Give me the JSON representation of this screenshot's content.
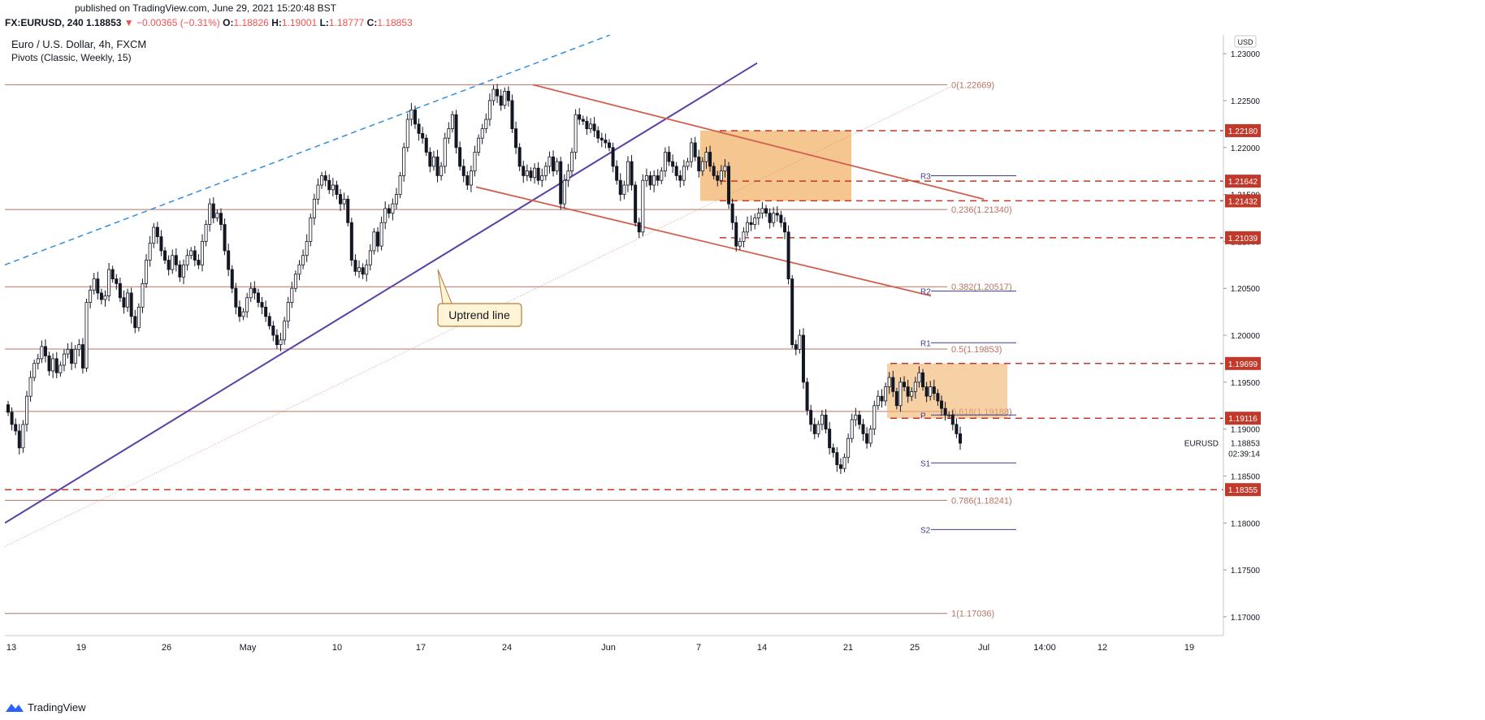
{
  "header": {
    "published": "published on TradingView.com, June 29, 2021 15:20:48 BST",
    "symbol": "FX:EURUSD, 240",
    "last": "1.18853",
    "change_arrow": "▼",
    "change": "−0.00365 (−0.31%)",
    "o_label": "O:",
    "o_value": "1.18826",
    "h_label": "H:",
    "h_value": "1.19001",
    "l_label": "L:",
    "l_value": "1.18777",
    "c_label": "C:",
    "c_value": "1.18853"
  },
  "legend": {
    "title": "Euro / U.S. Dollar, 4h, FXCM",
    "indicator": "Pivots (Classic, Weekly, 15)"
  },
  "footer": {
    "brand": "TradingView"
  },
  "colors": {
    "up": "#ffffff",
    "down": "#131722",
    "fib": "#b87363",
    "resistance": "#c0392b",
    "uptrend": "#5b3fa8",
    "dashed_blue": "#2f8fe0",
    "zone": "#f2b36b",
    "channel": "#d2604f"
  },
  "chart_data": {
    "type": "candlestick",
    "title": "Euro / U.S. Dollar, 4h, FXCM",
    "currency": "USD",
    "symbol_label": "EURUSD",
    "last_price": "1.18853",
    "countdown": "02:39:14",
    "ylim": [
      1.168,
      1.232
    ],
    "x_ticks": [
      "13",
      "19",
      "26",
      "May",
      "10",
      "17",
      "24",
      "Jun",
      "7",
      "14",
      "21",
      "25",
      "Jul",
      "14:00",
      "12",
      "19"
    ],
    "y_ticks": [
      "1.23000",
      "1.22500",
      "1.22000",
      "1.21500",
      "1.21000",
      "1.20500",
      "1.20000",
      "1.19500",
      "1.19000",
      "1.18500",
      "1.18000",
      "1.17500",
      "1.17000"
    ],
    "fib_levels": [
      {
        "label": "0(1.22669)",
        "value": 1.22669
      },
      {
        "label": "0.236(1.21340)",
        "value": 1.2134
      },
      {
        "label": "0.382(1.20517)",
        "value": 1.20517
      },
      {
        "label": "0.5(1.19853)",
        "value": 1.19853
      },
      {
        "label": "0.618(1.19188)",
        "value": 1.19188
      },
      {
        "label": "0.786(1.18241)",
        "value": 1.18241
      },
      {
        "label": "1(1.17036)",
        "value": 1.17036
      }
    ],
    "dashed_levels": [
      {
        "label": "1.22180",
        "value": 1.2218
      },
      {
        "label": "1.21642",
        "value": 1.21642
      },
      {
        "label": "1.21432",
        "value": 1.21432
      },
      {
        "label": "1.21039",
        "value": 1.21039
      },
      {
        "label": "1.19699",
        "value": 1.19699
      },
      {
        "label": "1.19116",
        "value": 1.19116
      },
      {
        "label": "1.18355",
        "value": 1.18355
      }
    ],
    "pivots": [
      {
        "label": "R3",
        "value": 1.217
      },
      {
        "label": "R2",
        "value": 1.2047
      },
      {
        "label": "R1",
        "value": 1.1992
      },
      {
        "label": "P",
        "value": 1.1915
      },
      {
        "label": "S1",
        "value": 1.1864
      },
      {
        "label": "S2",
        "value": 1.1793
      }
    ],
    "annotation": "Uptrend line",
    "closes": [
      1.1918,
      1.1905,
      1.1898,
      1.188,
      1.1905,
      1.1935,
      1.1955,
      1.197,
      1.1975,
      1.1988,
      1.1978,
      1.1962,
      1.1975,
      1.196,
      1.1968,
      1.198,
      1.1985,
      1.197,
      1.1985,
      1.199,
      1.1965,
      1.2035,
      1.2048,
      1.206,
      1.2045,
      1.2038,
      1.2042,
      1.207,
      1.206,
      1.2055,
      1.204,
      1.203,
      1.2045,
      1.202,
      1.2008,
      1.203,
      1.2055,
      1.208,
      1.2098,
      1.2115,
      1.2105,
      1.209,
      1.208,
      1.207,
      1.2085,
      1.2075,
      1.2062,
      1.2075,
      1.2085,
      1.209,
      1.208,
      1.2075,
      1.21,
      1.2118,
      1.214,
      1.2125,
      1.213,
      1.2118,
      1.209,
      1.207,
      1.205,
      1.203,
      1.202,
      1.2025,
      1.204,
      1.205,
      1.2045,
      1.2035,
      1.203,
      1.202,
      1.201,
      1.2,
      1.199,
      1.1995,
      1.2015,
      1.2035,
      1.205,
      1.2065,
      1.2075,
      1.2085,
      1.21,
      1.2125,
      1.2145,
      1.216,
      1.217,
      1.2165,
      1.2155,
      1.216,
      1.215,
      1.214,
      1.2145,
      1.212,
      1.208,
      1.2068,
      1.2072,
      1.2065,
      1.2075,
      1.209,
      1.211,
      1.2095,
      1.212,
      1.2135,
      1.213,
      1.214,
      1.215,
      1.217,
      1.22,
      1.223,
      1.224,
      1.2225,
      1.2215,
      1.221,
      1.2195,
      1.218,
      1.219,
      1.217,
      1.218,
      1.221,
      1.222,
      1.2235,
      1.22,
      1.218,
      1.217,
      1.216,
      1.2175,
      1.2195,
      1.221,
      1.222,
      1.223,
      1.225,
      1.2262,
      1.2255,
      1.2245,
      1.226,
      1.225,
      1.222,
      1.22,
      1.218,
      1.217,
      1.2175,
      1.2168,
      1.2178,
      1.2165,
      1.217,
      1.218,
      1.219,
      1.2175,
      1.2185,
      1.214,
      1.2165,
      1.2175,
      1.2195,
      1.2235,
      1.223,
      1.2228,
      1.222,
      1.2225,
      1.2218,
      1.221,
      1.2208,
      1.2205,
      1.22,
      1.218,
      1.2165,
      1.215,
      1.216,
      1.2185,
      1.216,
      1.212,
      1.211,
      1.2165,
      1.217,
      1.216,
      1.217,
      1.2165,
      1.2175,
      1.2195,
      1.2185,
      1.218,
      1.217,
      1.2165,
      1.218,
      1.2185,
      1.2205,
      1.219,
      1.2175,
      1.2185,
      1.2195,
      1.218,
      1.217,
      1.2165,
      1.2175,
      1.218,
      1.214,
      1.212,
      1.2095,
      1.21,
      1.211,
      1.212,
      1.2118,
      1.2125,
      1.213,
      1.2135,
      1.213,
      1.212,
      1.213,
      1.2128,
      1.212,
      1.211,
      1.206,
      1.199,
      1.1985,
      1.2,
      1.195,
      1.192,
      1.1905,
      1.1895,
      1.1905,
      1.1915,
      1.19,
      1.188,
      1.1875,
      1.1862,
      1.1858,
      1.187,
      1.189,
      1.191,
      1.1915,
      1.1905,
      1.1895,
      1.1885,
      1.19,
      1.1925,
      1.1935,
      1.193,
      1.1945,
      1.1955,
      1.194,
      1.1925,
      1.195,
      1.1945,
      1.1935,
      1.194,
      1.195,
      1.196,
      1.1945,
      1.1935,
      1.1945,
      1.1938,
      1.193,
      1.1922,
      1.1915,
      1.1915,
      1.1905,
      1.1895,
      1.1885
    ]
  }
}
